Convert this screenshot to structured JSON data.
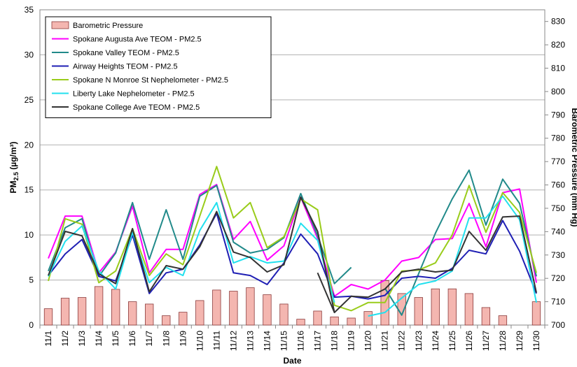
{
  "chart_data": {
    "type": "bar+line",
    "categories": [
      "11/1",
      "11/2",
      "11/3",
      "11/4",
      "11/5",
      "11/6",
      "11/7",
      "11/8",
      "11/9",
      "11/10",
      "11/11",
      "11/12",
      "11/13",
      "11/14",
      "11/15",
      "11/16",
      "11/17",
      "11/18",
      "11/19",
      "11/20",
      "11/21",
      "11/22",
      "11/23",
      "11/24",
      "11/25",
      "11/26",
      "11/27",
      "11/28",
      "11/29",
      "11/30"
    ],
    "xlabel": "Date",
    "ylabel_left_main": "PM",
    "ylabel_left_sub": "2.5",
    "ylabel_left_units": " (µg/m³)",
    "ylabel_right": "Barometric Pressure (mm Hg)",
    "ylim_left": [
      0,
      35
    ],
    "yticks_left": [
      0,
      5,
      10,
      15,
      20,
      25,
      30,
      35
    ],
    "ylim_right": [
      700,
      835
    ],
    "yticks_right": [
      700,
      710,
      720,
      730,
      740,
      750,
      760,
      770,
      780,
      790,
      800,
      810,
      820,
      830
    ],
    "grid": "horizontal",
    "legend_position": "top-left",
    "bar_series": {
      "name": "Barometric Pressure",
      "axis": "right",
      "color": "#f4b6b0",
      "edge_color": "#8b3a3a",
      "values": [
        707,
        711.5,
        711.8,
        716.5,
        715.3,
        710,
        709,
        704,
        705.5,
        710.5,
        715,
        714.5,
        716,
        713,
        709,
        702.5,
        706,
        703.5,
        703,
        705.8,
        719,
        713.5,
        711.8,
        715.5,
        715.5,
        713.5,
        707.5,
        704,
        700,
        710
      ]
    },
    "series": [
      {
        "name": "Spokane Augusta Ave TEOM - PM2.5",
        "color": "#ff00ff",
        "values": [
          7.4,
          12.1,
          12.1,
          5.8,
          8.1,
          13.2,
          5.8,
          8.4,
          8.4,
          14.5,
          15.6,
          9.5,
          11.5,
          7.2,
          8.8,
          14.2,
          9.6,
          3.2,
          4.5,
          4.0,
          5.0,
          7.1,
          7.5,
          9.5,
          9.6,
          13.5,
          8.7,
          14.7,
          15.1,
          4.7
        ]
      },
      {
        "name": "Spokane Valley TEOM - PM2.5",
        "color": "#218a8a",
        "values": [
          6.0,
          10.8,
          11.8,
          5.4,
          8.0,
          13.6,
          7.3,
          12.8,
          7.3,
          14.3,
          15.5,
          9.2,
          8.0,
          8.4,
          9.7,
          14.6,
          9.9,
          4.6,
          6.4,
          null,
          4.1,
          1.1,
          5.7,
          10.2,
          14.0,
          17.2,
          11.1,
          16.2,
          13.5,
          5.4
        ]
      },
      {
        "name": "Airway Heights TEOM - PM2.5",
        "color": "#1f1fb4",
        "values": [
          5.5,
          7.9,
          9.5,
          5.4,
          4.9,
          10.0,
          3.5,
          5.8,
          6.2,
          8.9,
          12.4,
          5.8,
          5.5,
          4.5,
          6.9,
          10.1,
          7.9,
          3.1,
          3.2,
          2.9,
          3.3,
          5.2,
          5.4,
          5.2,
          6.3,
          8.3,
          7.9,
          11.6,
          8.2,
          3.5
        ]
      },
      {
        "name": "Spokane N Monroe St Nephelometer - PM2.5",
        "color": "#99cc1a",
        "values": [
          4.9,
          11.8,
          11.2,
          4.7,
          6.0,
          10.7,
          5.5,
          7.9,
          6.7,
          12.1,
          17.6,
          11.9,
          13.6,
          8.6,
          9.8,
          14.0,
          12.8,
          2.2,
          1.6,
          2.5,
          2.5,
          6.0,
          6.1,
          6.9,
          10.0,
          15.5,
          10.3,
          14.7,
          12.5,
          5.8
        ]
      },
      {
        "name": "Liberty Lake Nephelometer - PM2.5",
        "color": "#22e0ee",
        "values": [
          5.4,
          9.3,
          11.0,
          6.0,
          4.0,
          10.3,
          4.7,
          6.4,
          5.5,
          10.5,
          13.6,
          6.9,
          7.6,
          6.9,
          7.1,
          11.3,
          9.4,
          2.5,
          null,
          1.0,
          1.4,
          3.0,
          4.5,
          4.9,
          6.0,
          11.9,
          11.9,
          14.3,
          11.7,
          2.5
        ]
      },
      {
        "name": "Spokane College Ave TEOM - PM2.5",
        "color": "#333333",
        "values": [
          5.5,
          10.4,
          9.9,
          5.7,
          4.6,
          10.7,
          3.7,
          6.6,
          6.2,
          8.7,
          12.6,
          8.1,
          7.5,
          5.9,
          6.7,
          14.2,
          10.4,
          1.4,
          3.2,
          3.1,
          4.0,
          5.9,
          6.2,
          5.9,
          6.1,
          10.4,
          8.3,
          12.0,
          12.1,
          3.6
        ]
      }
    ],
    "extra_segments": [
      {
        "series_index": 5,
        "from": 16,
        "to": 17,
        "y_from": 5.8
      }
    ]
  }
}
